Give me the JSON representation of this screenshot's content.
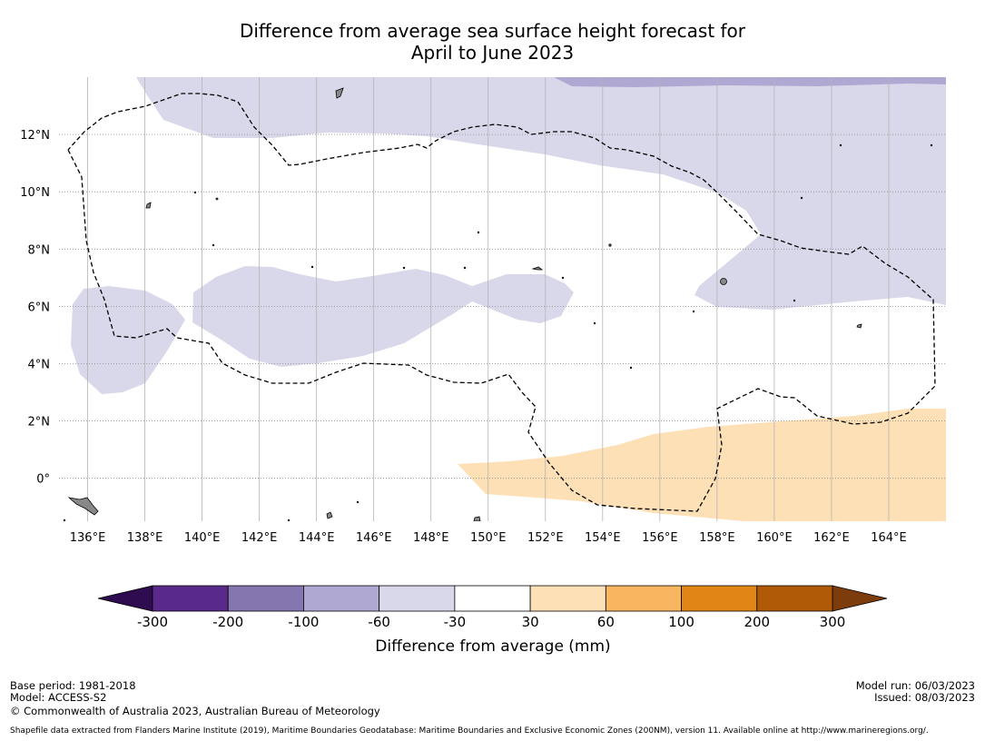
{
  "title": {
    "line1": "Difference from average sea surface height forecast for",
    "line2": "April to June 2023"
  },
  "map": {
    "lat_labels": [
      {
        "label": "12°N",
        "value": 12
      },
      {
        "label": "10°N",
        "value": 10
      },
      {
        "label": "8°N",
        "value": 8
      },
      {
        "label": "6°N",
        "value": 6
      },
      {
        "label": "4°N",
        "value": 4
      },
      {
        "label": "2°N",
        "value": 2
      },
      {
        "label": "0°",
        "value": 0
      }
    ],
    "lon_labels": [
      {
        "label": "136°E",
        "value": 136
      },
      {
        "label": "138°E",
        "value": 138
      },
      {
        "label": "140°E",
        "value": 140
      },
      {
        "label": "142°E",
        "value": 142
      },
      {
        "label": "144°E",
        "value": 144
      },
      {
        "label": "146°E",
        "value": 146
      },
      {
        "label": "148°E",
        "value": 148
      },
      {
        "label": "150°E",
        "value": 150
      },
      {
        "label": "152°E",
        "value": 152
      },
      {
        "label": "154°E",
        "value": 154
      },
      {
        "label": "156°E",
        "value": 156
      },
      {
        "label": "158°E",
        "value": 158
      },
      {
        "label": "160°E",
        "value": 160
      },
      {
        "label": "162°E",
        "value": 162
      },
      {
        "label": "164°E",
        "value": 164
      }
    ],
    "lon_range": [
      135.0,
      166.0
    ],
    "lat_range": [
      -1.5,
      14.0
    ]
  },
  "colorbar": {
    "label": "Difference from average (mm)",
    "ticks": [
      "-300",
      "-200",
      "-100",
      "-60",
      "-30",
      "30",
      "60",
      "100",
      "200",
      "300"
    ],
    "colors": [
      "#5a2a8a",
      "#8576b0",
      "#afa8d2",
      "#d8d8ea",
      "#ffffff",
      "#fde0b6",
      "#f9b660",
      "#e08516",
      "#b05a08"
    ],
    "under_color": "#2f0b4f",
    "over_color": "#7c3c0c"
  },
  "colors": {
    "minus_30_60": "#d8d8ea",
    "minus_60_100": "#afa8d2",
    "plus_30_60": "#fde0b6",
    "land": "#888888"
  },
  "footer": {
    "base_period": "Base period: 1981-2018",
    "model": "Model: ACCESS-S2",
    "copyright": "© Commonwealth of Australia 2023, Australian Bureau of Meteorology",
    "model_run": "Model run: 06/03/2023",
    "issued": "Issued: 08/03/2023",
    "shapefile": "Shapefile data extracted from Flanders Marine Institute (2019), Maritime Boundaries Geodatabase: Maritime Boundaries and Exclusive Economic Zones (200NM), version 11. Available online at http://www.marineregions.org/."
  }
}
